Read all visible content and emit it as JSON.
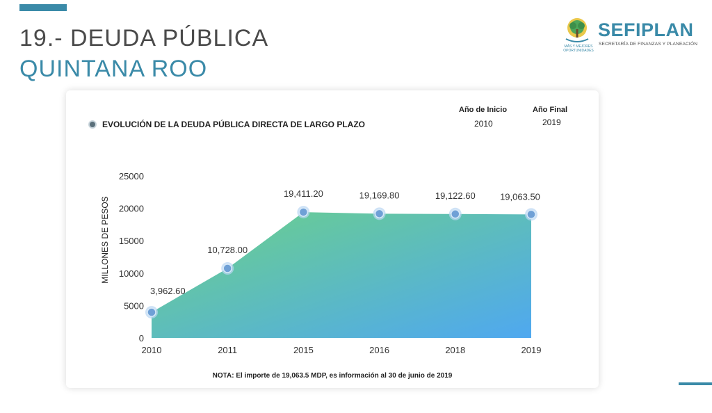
{
  "header": {
    "title_line1": "19.- DEUDA PÚBLICA",
    "title_line2": "QUINTANA ROO"
  },
  "logo": {
    "emblem_text": "MÁS Y MEJORES OPORTUNIDADES",
    "name": "SEFIPLAN",
    "subtitle": "SECRETARÍA DE FINANZAS Y PLANEACIÓN"
  },
  "info": {
    "start_label": "Año de Inicio",
    "start_value": "2010",
    "end_label": "Año Final",
    "end_value": "2019"
  },
  "note": "NOTA: El importe de 19,063.5 MDP, es información al 30 de junio de 2019",
  "colors": {
    "accent": "#3a8aa8",
    "area_top": "#6cd188",
    "area_bottom": "#4fa8f0",
    "point": "#6fa0d6"
  },
  "chart_data": {
    "type": "area",
    "title": "EVOLUCIÓN DE LA DEUDA PÚBLICA DIRECTA DE LARGO PLAZO",
    "categories": [
      "2010",
      "2011",
      "2015",
      "2016",
      "2018",
      "2019"
    ],
    "values": [
      3962.6,
      10728.0,
      19411.2,
      19169.8,
      19122.6,
      19063.5
    ],
    "data_labels": [
      "3,962.60",
      "10,728.00",
      "19,411.20",
      "19,169.80",
      "19,122.60",
      "19,063.50"
    ],
    "xlabel": "",
    "ylabel": "MILLONES DE PESOS",
    "ylim": [
      0,
      25000
    ],
    "yticks": [
      0,
      5000,
      10000,
      15000,
      20000,
      25000
    ],
    "ytick_labels": [
      "0",
      "5000",
      "10000",
      "15000",
      "20000",
      "25000"
    ],
    "grid": false,
    "legend": "top-left"
  }
}
